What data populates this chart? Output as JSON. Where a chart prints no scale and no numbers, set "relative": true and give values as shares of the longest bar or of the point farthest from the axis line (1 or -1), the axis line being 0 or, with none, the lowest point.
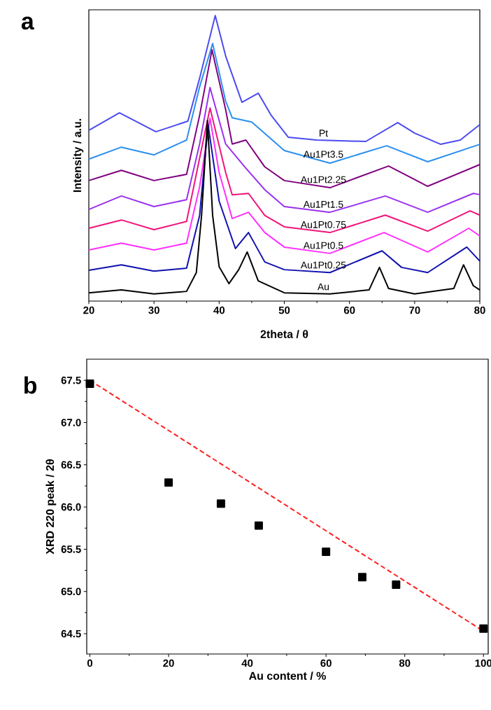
{
  "chart_data": [
    {
      "type": "line",
      "relative": true,
      "xlabel": "2theta / θ",
      "ylabel": "Intensity / a.u.",
      "annotations": [
        "a"
      ],
      "xlim": [
        20,
        80
      ],
      "xticks": [
        20,
        30,
        40,
        50,
        60,
        70,
        80
      ],
      "series": [
        {
          "name": "Pt",
          "color": "#4b4bf0",
          "x": [
            20,
            24.7,
            30.3,
            35.2,
            37,
            39.4,
            41,
            43.5,
            46,
            48,
            50.6,
            55,
            62.5,
            67.4,
            70,
            74,
            77,
            80
          ],
          "values": [
            0.598,
            0.659,
            0.593,
            0.63,
            0.78,
            1,
            0.858,
            0.696,
            0.728,
            0.65,
            0.574,
            0.564,
            0.559,
            0.625,
            0.588,
            0.549,
            0.564,
            0.618
          ]
        },
        {
          "name": "Au1Pt3.5",
          "color": "#2b8ff0",
          "x": [
            20,
            25,
            30,
            35,
            37,
            39,
            41,
            42,
            45,
            50,
            57,
            65.7,
            72,
            80
          ],
          "values": [
            0.497,
            0.539,
            0.512,
            0.564,
            0.75,
            0.902,
            0.7,
            0.642,
            0.627,
            0.527,
            0.483,
            0.544,
            0.488,
            0.549
          ]
        },
        {
          "name": "Au1Pt2.25",
          "color": "#800080",
          "x": [
            20,
            25,
            30,
            35,
            37,
            38.9,
            41,
            42,
            44.1,
            47,
            50,
            57,
            66,
            72,
            80
          ],
          "values": [
            0.422,
            0.458,
            0.422,
            0.444,
            0.65,
            0.88,
            0.67,
            0.55,
            0.564,
            0.47,
            0.422,
            0.397,
            0.473,
            0.402,
            0.478
          ]
        },
        {
          "name": "Au1Pt1.5",
          "color": "#9a30f0",
          "x": [
            20,
            25,
            30,
            35,
            37,
            38.6,
            41,
            44,
            47,
            50,
            57,
            65.5,
            72,
            79,
            80
          ],
          "values": [
            0.321,
            0.368,
            0.331,
            0.355,
            0.55,
            0.748,
            0.55,
            0.468,
            0.39,
            0.331,
            0.311,
            0.368,
            0.311,
            0.377,
            0.373
          ]
        },
        {
          "name": "Au1Pt0.75",
          "color": "#f0147a",
          "x": [
            20,
            25,
            30,
            35,
            37,
            38.6,
            41,
            42,
            44.5,
            47,
            50,
            57,
            65.5,
            72,
            78.5,
            80
          ],
          "values": [
            0.255,
            0.284,
            0.25,
            0.279,
            0.5,
            0.676,
            0.45,
            0.372,
            0.377,
            0.3,
            0.26,
            0.24,
            0.301,
            0.245,
            0.316,
            0.301
          ]
        },
        {
          "name": "Au1Pt0.5",
          "color": "#ff30ff",
          "x": [
            20,
            25,
            30,
            35,
            37,
            38.6,
            40,
            42,
            44.5,
            47,
            50,
            57,
            65.3,
            72,
            78.3,
            80
          ],
          "values": [
            0.179,
            0.203,
            0.179,
            0.203,
            0.4,
            0.64,
            0.45,
            0.289,
            0.311,
            0.24,
            0.189,
            0.167,
            0.24,
            0.172,
            0.255,
            0.228
          ]
        },
        {
          "name": "Au1Pt0.25",
          "color": "#1010b0",
          "x": [
            20,
            25,
            30,
            35,
            37,
            38.3,
            40,
            42.5,
            44.5,
            47,
            50,
            57,
            65,
            68,
            72,
            78,
            80
          ],
          "values": [
            0.108,
            0.127,
            0.105,
            0.115,
            0.3,
            0.618,
            0.35,
            0.184,
            0.24,
            0.137,
            0.11,
            0.1,
            0.176,
            0.118,
            0.1,
            0.189,
            0.14
          ]
        },
        {
          "name": "Au",
          "color": "#000000",
          "x": [
            20,
            25,
            30,
            35,
            36.5,
            37.3,
            38.2,
            39,
            40,
            41.5,
            43,
            44.3,
            46,
            50,
            57,
            63,
            64.6,
            66,
            70,
            76,
            77.5,
            79,
            80
          ],
          "values": [
            0.029,
            0.039,
            0.025,
            0.034,
            0.1,
            0.3,
            0.632,
            0.3,
            0.12,
            0.061,
            0.11,
            0.172,
            0.071,
            0.029,
            0.025,
            0.039,
            0.118,
            0.044,
            0.025,
            0.044,
            0.127,
            0.054,
            0.039
          ]
        }
      ]
    },
    {
      "type": "scatter",
      "xlabel": "Au content / %",
      "ylabel": "XRD 220 peak / 2θ",
      "annotations": [
        "b"
      ],
      "xlim": [
        -0.8,
        101.2
      ],
      "ylim": [
        64.26,
        67.75
      ],
      "xticks": [
        0,
        20,
        40,
        60,
        80,
        100
      ],
      "yticks": [
        {
          "value": 64.5,
          "label": "64.5"
        },
        {
          "value": 65,
          "label": "65.0"
        },
        {
          "value": 65.5,
          "label": "65.5"
        },
        {
          "value": 66,
          "label": "66.0"
        },
        {
          "value": 66.5,
          "label": "66.5"
        },
        {
          "value": 67,
          "label": "67.0"
        },
        {
          "value": 67.5,
          "label": "67.5"
        }
      ],
      "series": [
        {
          "color": "#000000",
          "marker": "square",
          "x": [
            0,
            20,
            33.3,
            42.9,
            60,
            69.2,
            77.8,
            100
          ],
          "values": [
            67.46,
            66.29,
            66.04,
            65.78,
            65.47,
            65.17,
            65.08,
            64.56
          ]
        },
        {
          "type": "line",
          "color": "#ff2020",
          "line_style": "dashed",
          "marker": "none",
          "x": [
            0,
            100
          ],
          "values": [
            67.5,
            64.53
          ]
        }
      ]
    }
  ]
}
